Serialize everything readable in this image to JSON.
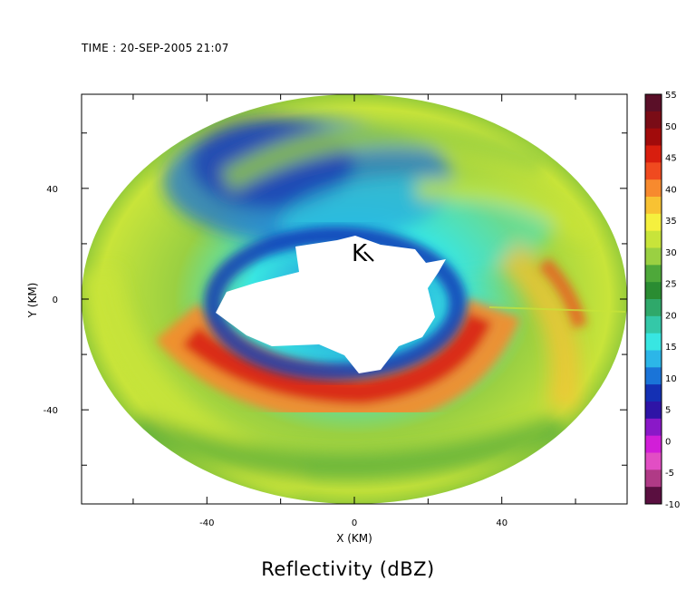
{
  "header": {
    "time_label": "TIME : 20-SEP-2005 21:07"
  },
  "chart_data": {
    "type": "heatmap",
    "title": "Reflectivity (dBZ)",
    "xlabel": "X (KM)",
    "ylabel": "Y (KM)",
    "xlim": [
      -74,
      74
    ],
    "ylim": [
      -74,
      74
    ],
    "x_ticks": [
      -40,
      0,
      40
    ],
    "y_ticks": [
      -40,
      0,
      40
    ],
    "radar_range_km": 74,
    "colorbar": {
      "ticks": [
        55,
        50,
        45,
        40,
        35,
        30,
        25,
        20,
        15,
        10,
        5,
        0,
        -5,
        -10
      ],
      "range": [
        -10,
        55
      ],
      "colors": [
        "#5a0f28",
        "#7a0c16",
        "#a10b0b",
        "#d81e0e",
        "#f04a1f",
        "#f78a2e",
        "#f8c233",
        "#f5f03e",
        "#c8e43a",
        "#9ad042",
        "#4ea83a",
        "#2a8c32",
        "#2fa86a",
        "#34c8a8",
        "#38e6e2",
        "#2cb6e8",
        "#1a74d8",
        "#1430b4",
        "#2e14a6",
        "#8a18c8",
        "#d21ed8",
        "#e24ec4",
        "#b03a86",
        "#5a0f40"
      ]
    },
    "eye_center_km": [
      10,
      8
    ],
    "eyewall_max_dbz": 50,
    "annotation_marker": "K"
  }
}
